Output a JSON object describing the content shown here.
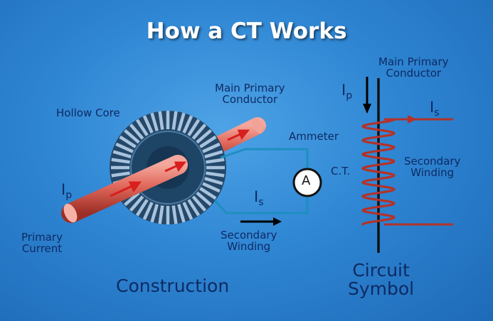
{
  "title": "How a CT Works",
  "labels": {
    "hollow_core": "Hollow Core",
    "main_primary_conductor_left": "Main Primary\nConductor",
    "ammeter": "Ammeter",
    "ammeter_symbol": "A",
    "ip_left": "I",
    "ip_left_sub": "p",
    "is_left": "I",
    "is_left_sub": "s",
    "primary_current": "Primary\nCurrent",
    "secondary_winding_left": "Secondary\nWinding",
    "construction": "Construction",
    "main_primary_conductor_right": "Main Primary\nConductor",
    "ip_right": "I",
    "ip_right_sub": "p",
    "is_right": "I",
    "is_right_sub": "s",
    "ct": "C.T.",
    "secondary_winding_right": "Secondary\nWinding",
    "circuit_symbol": "Circuit\nSymbol"
  },
  "colors": {
    "background": "#2f86d3",
    "label_text": "#0e2a63",
    "conductor": "#e06a5c",
    "arrow_red": "#d81e1e",
    "coil": "#b3322a",
    "secondary_wire": "#1d8fbf",
    "core_teeth": "#a8c2dc"
  }
}
